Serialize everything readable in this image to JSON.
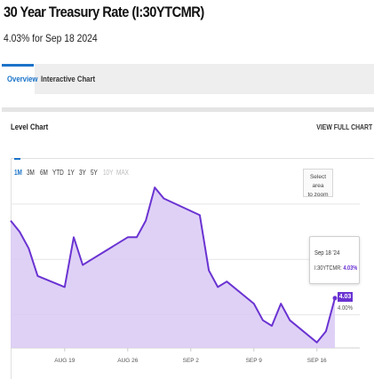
{
  "header": {
    "title": "30 Year Treasury Rate (I:30YTCMR)",
    "subtitle": "4.03% for Sep 18 2024"
  },
  "tabs": [
    {
      "label": "Overview",
      "active": true
    },
    {
      "label": "Interactive Chart",
      "active": false
    }
  ],
  "panel": {
    "title": "Level Chart",
    "view_full_label": "VIEW FULL CHART"
  },
  "range_buttons": [
    {
      "label": "1M",
      "state": "active"
    },
    {
      "label": "3M",
      "state": "normal"
    },
    {
      "label": "6M",
      "state": "normal"
    },
    {
      "label": "YTD",
      "state": "normal"
    },
    {
      "label": "1Y",
      "state": "normal"
    },
    {
      "label": "3Y",
      "state": "normal"
    },
    {
      "label": "5Y",
      "state": "normal"
    },
    {
      "label": "10Y",
      "state": "disabled"
    },
    {
      "label": "MAX",
      "state": "disabled"
    }
  ],
  "zoom_box": {
    "line1": "Select area",
    "line2": "to zoom"
  },
  "tooltip": {
    "date": "Sep 18 '24",
    "label": "I:30YTCMR:",
    "value": "4.03%"
  },
  "last_value_tag": "4.03",
  "last_value_under": "4.00%",
  "colors": {
    "line": "#6a33d2",
    "fill": "#d9c9f5",
    "accent": "#1a73c8"
  },
  "chart_data": {
    "type": "area",
    "series": [
      {
        "x": [
          "2024-08-13",
          "2024-08-14",
          "2024-08-15",
          "2024-08-16",
          "2024-08-19",
          "2024-08-20",
          "2024-08-21",
          "2024-08-22",
          "2024-08-23",
          "2024-08-26",
          "2024-08-27",
          "2024-08-28",
          "2024-08-29",
          "2024-08-30",
          "2024-09-03",
          "2024-09-04",
          "2024-09-05",
          "2024-09-06",
          "2024-09-09",
          "2024-09-10",
          "2024-09-11",
          "2024-09-12",
          "2024-09-13",
          "2024-09-16",
          "2024-09-17",
          "2024-09-18"
        ],
        "y": [
          4.17,
          4.15,
          4.12,
          4.07,
          4.05,
          4.14,
          4.09,
          4.1,
          4.11,
          4.14,
          4.14,
          4.17,
          4.23,
          4.21,
          4.18,
          4.08,
          4.05,
          4.06,
          4.02,
          3.99,
          3.98,
          4.02,
          3.99,
          3.95,
          3.97,
          4.03
        ]
      }
    ],
    "x_tick_labels": [
      {
        "date": "2024-08-19",
        "label": "AUG 19"
      },
      {
        "date": "2024-08-26",
        "label": "AUG 26"
      },
      {
        "date": "2024-09-02",
        "label": "SEP 2"
      },
      {
        "date": "2024-09-09",
        "label": "SEP 9"
      },
      {
        "date": "2024-09-16",
        "label": "SEP 16"
      }
    ],
    "ylim": [
      3.94,
      4.28
    ],
    "grid": true
  }
}
